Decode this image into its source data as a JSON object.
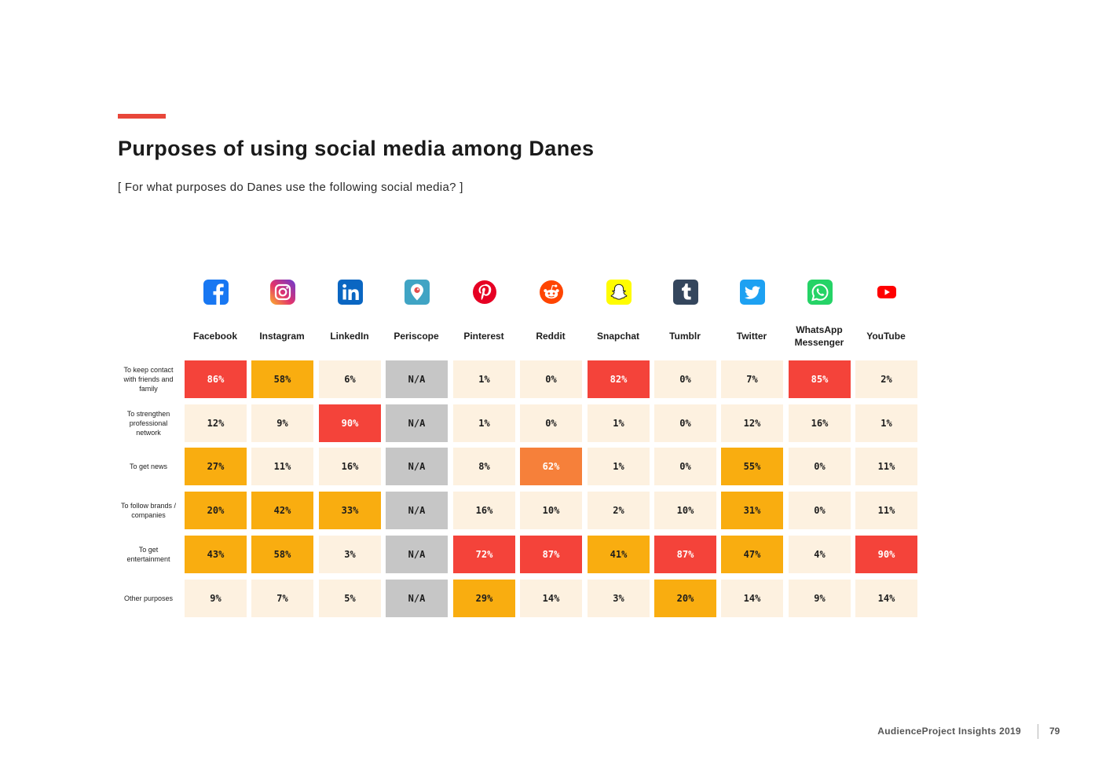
{
  "page": {
    "title": "Purposes of using social media among Danes",
    "subtitle": "[ For what purposes do Danes use the following social media? ]",
    "footer": "AudienceProject Insights 2019",
    "page_number": "79"
  },
  "colors": {
    "accent": "#e8473a",
    "low": "#fdf1e0",
    "mid": "#f9ad10",
    "orange": "#f6803a",
    "high": "#f4433a",
    "na": "#c6c6c6"
  },
  "chart_data": {
    "type": "table",
    "title": "Purposes of using social media among Danes",
    "subtitle": "[ For what purposes do Danes use the following social media? ]",
    "columns": [
      "Facebook",
      "Instagram",
      "LinkedIn",
      "Periscope",
      "Pinterest",
      "Reddit",
      "Snapchat",
      "Tumblr",
      "Twitter",
      "WhatsApp Messenger",
      "YouTube"
    ],
    "column_icons": [
      "facebook-icon",
      "instagram-icon",
      "linkedin-icon",
      "periscope-icon",
      "pinterest-icon",
      "reddit-icon",
      "snapchat-icon",
      "tumblr-icon",
      "twitter-icon",
      "whatsapp-icon",
      "youtube-icon"
    ],
    "rows": [
      "To keep contact with friends and family",
      "To strengthen professional network",
      "To get news",
      "To follow brands / companies",
      "To get entertainment",
      "Other purposes"
    ],
    "values": [
      [
        "86%",
        "58%",
        "6%",
        "N/A",
        "1%",
        "0%",
        "82%",
        "0%",
        "7%",
        "85%",
        "2%"
      ],
      [
        "12%",
        "9%",
        "90%",
        "N/A",
        "1%",
        "0%",
        "1%",
        "0%",
        "12%",
        "16%",
        "1%"
      ],
      [
        "27%",
        "11%",
        "16%",
        "N/A",
        "8%",
        "62%",
        "1%",
        "0%",
        "55%",
        "0%",
        "11%"
      ],
      [
        "20%",
        "42%",
        "33%",
        "N/A",
        "16%",
        "10%",
        "2%",
        "10%",
        "31%",
        "0%",
        "11%"
      ],
      [
        "43%",
        "58%",
        "3%",
        "N/A",
        "72%",
        "87%",
        "41%",
        "87%",
        "47%",
        "4%",
        "90%"
      ],
      [
        "9%",
        "7%",
        "5%",
        "N/A",
        "29%",
        "14%",
        "3%",
        "20%",
        "14%",
        "9%",
        "14%"
      ]
    ],
    "color_levels": [
      [
        "high",
        "mid",
        "low",
        "na",
        "low",
        "low",
        "high",
        "low",
        "low",
        "high",
        "low"
      ],
      [
        "low",
        "low",
        "high",
        "na",
        "low",
        "low",
        "low",
        "low",
        "low",
        "low",
        "low"
      ],
      [
        "mid",
        "low",
        "low",
        "na",
        "low",
        "orange",
        "low",
        "low",
        "mid",
        "low",
        "low"
      ],
      [
        "mid",
        "mid",
        "mid",
        "na",
        "low",
        "low",
        "low",
        "low",
        "mid",
        "low",
        "low"
      ],
      [
        "mid",
        "mid",
        "low",
        "na",
        "high",
        "high",
        "mid",
        "high",
        "mid",
        "low",
        "high"
      ],
      [
        "low",
        "low",
        "low",
        "na",
        "mid",
        "low",
        "low",
        "mid",
        "low",
        "low",
        "low"
      ]
    ]
  }
}
